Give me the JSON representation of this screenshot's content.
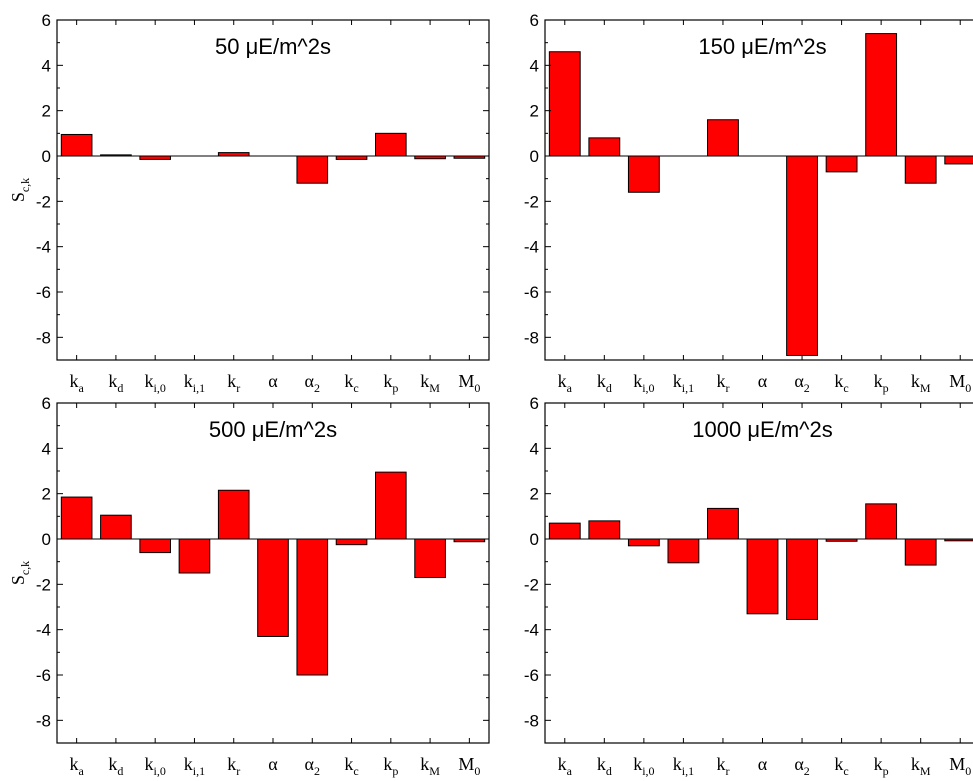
{
  "chart_data": [
    {
      "type": "bar",
      "title": "50 μE/m^2s",
      "ylabel": "S_c,k",
      "ylim": [
        -9,
        6
      ],
      "yticks": [
        6,
        4,
        2,
        0,
        -2,
        -4,
        -6,
        -8
      ],
      "categories": [
        "k_a",
        "k_d",
        "k_i,0",
        "k_i,1",
        "k_r",
        "α",
        "α_2",
        "k_c",
        "k_p",
        "k_M",
        "M_0"
      ],
      "values": [
        0.95,
        0.05,
        -0.15,
        0.0,
        0.15,
        0.0,
        -1.2,
        -0.15,
        1.0,
        -0.12,
        -0.1
      ],
      "bar_color": "#ff0000"
    },
    {
      "type": "bar",
      "title": "150 μE/m^2s",
      "ylabel": "",
      "ylim": [
        -9,
        6
      ],
      "yticks": [
        6,
        4,
        2,
        0,
        -2,
        -4,
        -6,
        -8
      ],
      "categories": [
        "k_a",
        "k_d",
        "k_i,0",
        "k_i,1",
        "k_r",
        "α",
        "α_2",
        "k_c",
        "k_p",
        "k_M",
        "M_0"
      ],
      "values": [
        4.6,
        0.8,
        -1.6,
        0.0,
        1.6,
        0.0,
        -8.8,
        -0.7,
        5.4,
        -1.2,
        -0.35
      ],
      "bar_color": "#ff0000"
    },
    {
      "type": "bar",
      "title": "500 μE/m^2s",
      "ylabel": "S_c,k",
      "ylim": [
        -9,
        6
      ],
      "yticks": [
        6,
        4,
        2,
        0,
        -2,
        -4,
        -6,
        -8
      ],
      "categories": [
        "k_a",
        "k_d",
        "k_i,0",
        "k_i,1",
        "k_r",
        "α",
        "α_2",
        "k_c",
        "k_p",
        "k_M",
        "M_0"
      ],
      "values": [
        1.85,
        1.05,
        -0.6,
        -1.5,
        2.15,
        -4.3,
        -6.0,
        -0.25,
        2.95,
        -1.7,
        -0.12
      ],
      "bar_color": "#ff0000"
    },
    {
      "type": "bar",
      "title": "1000 μE/m^2s",
      "ylabel": "",
      "ylim": [
        -9,
        6
      ],
      "yticks": [
        6,
        4,
        2,
        0,
        -2,
        -4,
        -6,
        -8
      ],
      "categories": [
        "k_a",
        "k_d",
        "k_i,0",
        "k_i,1",
        "k_r",
        "α",
        "α_2",
        "k_c",
        "k_p",
        "k_M",
        "M_0"
      ],
      "values": [
        0.7,
        0.8,
        -0.3,
        -1.05,
        1.35,
        -3.3,
        -3.55,
        -0.1,
        1.55,
        -1.15,
        -0.08
      ],
      "bar_color": "#ff0000"
    }
  ]
}
